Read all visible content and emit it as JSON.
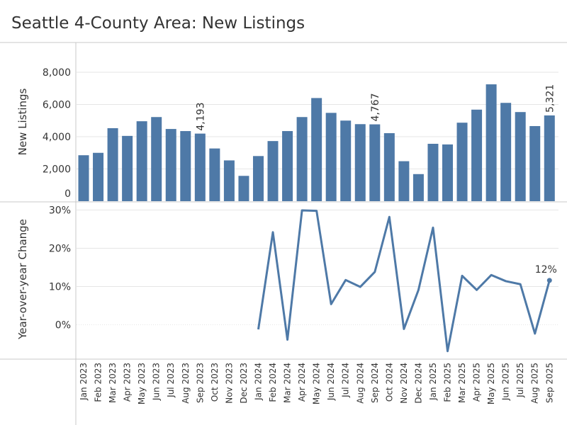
{
  "title": "Seattle 4-County Area: New Listings",
  "colors": {
    "bar": "#4e79a7",
    "line": "#4e79a7",
    "text": "#333333",
    "grid": "#e6e6e6",
    "axis": "#c8c8c8"
  },
  "chart_data": [
    {
      "type": "bar",
      "ylabel": "New Listings",
      "ylim": [
        0,
        9000
      ],
      "yticks": [
        "0",
        "2,000",
        "4,000",
        "6,000",
        "8,000"
      ],
      "categories": [
        "Jan 2023",
        "Feb 2023",
        "Mar 2023",
        "Apr 2023",
        "May 2023",
        "Jun 2023",
        "Jul 2023",
        "Aug 2023",
        "Sep 2023",
        "Oct 2023",
        "Nov 2023",
        "Dec 2023",
        "Jan 2024",
        "Feb 2024",
        "Mar 2024",
        "Apr 2024",
        "May 2024",
        "Jun 2024",
        "Jul 2024",
        "Aug 2024",
        "Sep 2024",
        "Oct 2024",
        "Nov 2024",
        "Dec 2024",
        "Jan 2025",
        "Feb 2025",
        "Mar 2025",
        "Apr 2025",
        "May 2025",
        "Jun 2025",
        "Jul 2025",
        "Aug 2025",
        "Sep 2025"
      ],
      "values": [
        2850,
        3000,
        4530,
        4050,
        4960,
        5220,
        4480,
        4350,
        4193,
        3270,
        2530,
        1570,
        2800,
        3730,
        4350,
        5220,
        6400,
        5480,
        5000,
        4780,
        4767,
        4220,
        2480,
        1680,
        3560,
        3520,
        4870,
        5680,
        7250,
        6100,
        5530,
        4660,
        5321
      ],
      "data_labels": [
        {
          "index": 8,
          "text": "4,193"
        },
        {
          "index": 20,
          "text": "4,767"
        },
        {
          "index": 32,
          "text": "5,321"
        }
      ]
    },
    {
      "type": "line",
      "ylabel": "Year-over-year Change",
      "ylim": [
        -8,
        30
      ],
      "yticks": [
        "0%",
        "10%",
        "20%",
        "30%"
      ],
      "categories": [
        "Jan 2023",
        "Feb 2023",
        "Mar 2023",
        "Apr 2023",
        "May 2023",
        "Jun 2023",
        "Jul 2023",
        "Aug 2023",
        "Sep 2023",
        "Oct 2023",
        "Nov 2023",
        "Dec 2023",
        "Jan 2024",
        "Feb 2024",
        "Mar 2024",
        "Apr 2024",
        "May 2024",
        "Jun 2024",
        "Jul 2024",
        "Aug 2024",
        "Sep 2024",
        "Oct 2024",
        "Nov 2024",
        "Dec 2024",
        "Jan 2025",
        "Feb 2025",
        "Mar 2025",
        "Apr 2025",
        "May 2025",
        "Jun 2025",
        "Jul 2025",
        "Aug 2025",
        "Sep 2025"
      ],
      "values": [
        null,
        null,
        null,
        null,
        null,
        null,
        null,
        null,
        null,
        null,
        null,
        null,
        -1.2,
        24.2,
        -3.9,
        29.9,
        29.8,
        5.4,
        11.7,
        9.9,
        13.8,
        28.2,
        -1.1,
        9.1,
        25.4,
        -6.9,
        12.8,
        9.1,
        13.0,
        11.4,
        10.6,
        -2.3,
        11.6
      ],
      "data_labels": [
        {
          "index": 32,
          "text": "12%"
        }
      ]
    }
  ]
}
